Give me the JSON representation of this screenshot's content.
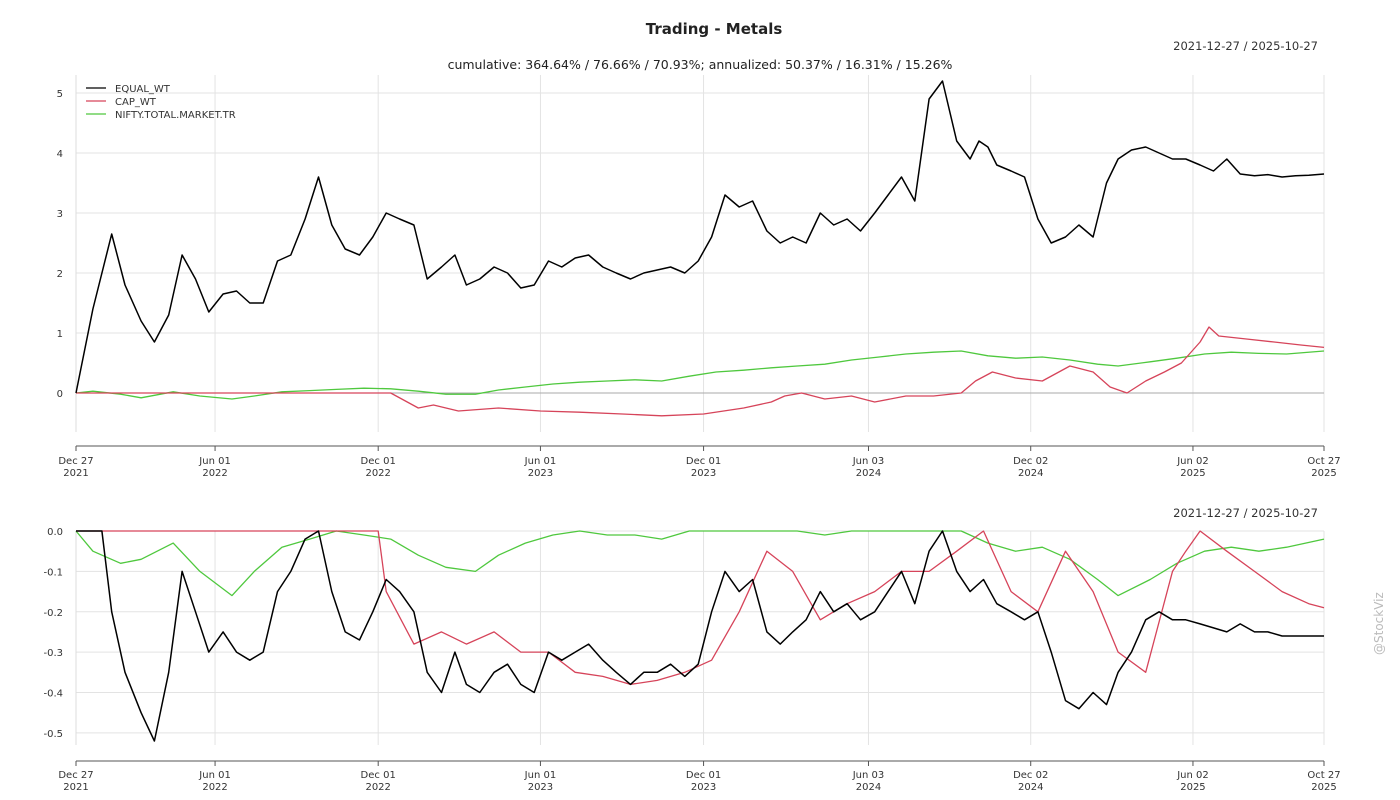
{
  "title": "Trading - Metals",
  "subtitle": "cumulative: 364.64% / 76.66% / 70.93%; annualized: 50.37% / 16.31% / 15.26%",
  "watermark": "@StockViz",
  "colors": {
    "EQUAL_WT": "#000000",
    "CAP_WT": "#d6445a",
    "NIFTY.TOTAL.MARKET.TR": "#4fc83e"
  },
  "chart_data": [
    {
      "type": "line",
      "date_range": "2021-12-27 / 2025-10-27",
      "ylim": [
        -0.65,
        5.3
      ],
      "yticks": [
        "0",
        "1",
        "2",
        "3",
        "4",
        "5"
      ],
      "ytick_values": [
        0,
        1,
        2,
        3,
        4,
        5
      ],
      "grid": true,
      "legend": "top-left",
      "x_labels": [
        [
          "Dec 27",
          "2021"
        ],
        [
          "Jun 01",
          "2022"
        ],
        [
          "Dec 01",
          "2022"
        ],
        [
          "Jun 01",
          "2023"
        ],
        [
          "Dec 01",
          "2023"
        ],
        [
          "Jun 03",
          "2024"
        ],
        [
          "Dec 02",
          "2024"
        ],
        [
          "Jun 02",
          "2025"
        ],
        [
          "Oct 27",
          "2025"
        ]
      ],
      "x_dates": [
        "2021-12-27",
        "2022-06-01",
        "2022-12-01",
        "2023-06-01",
        "2023-12-01",
        "2024-06-03",
        "2024-12-02",
        "2025-06-02",
        "2025-10-27"
      ],
      "series": [
        {
          "name": "EQUAL_WT",
          "color": "#000000",
          "x": [
            "2021-12-27",
            "2022-01-15",
            "2022-02-05",
            "2022-02-20",
            "2022-03-10",
            "2022-03-25",
            "2022-04-10",
            "2022-04-25",
            "2022-05-10",
            "2022-05-25",
            "2022-06-10",
            "2022-06-25",
            "2022-07-10",
            "2022-07-25",
            "2022-08-10",
            "2022-08-25",
            "2022-09-10",
            "2022-09-25",
            "2022-10-10",
            "2022-10-25",
            "2022-11-10",
            "2022-11-25",
            "2022-12-10",
            "2022-12-25",
            "2023-01-10",
            "2023-01-25",
            "2023-02-10",
            "2023-02-25",
            "2023-03-10",
            "2023-03-25",
            "2023-04-10",
            "2023-04-25",
            "2023-05-10",
            "2023-05-25",
            "2023-06-10",
            "2023-06-25",
            "2023-07-10",
            "2023-07-25",
            "2023-08-10",
            "2023-08-25",
            "2023-09-10",
            "2023-09-25",
            "2023-10-10",
            "2023-10-25",
            "2023-11-10",
            "2023-11-25",
            "2023-12-10",
            "2023-12-25",
            "2024-01-10",
            "2024-01-25",
            "2024-02-10",
            "2024-02-25",
            "2024-03-10",
            "2024-03-25",
            "2024-04-10",
            "2024-04-25",
            "2024-05-10",
            "2024-05-25",
            "2024-06-10",
            "2024-06-25",
            "2024-07-10",
            "2024-07-25",
            "2024-08-10",
            "2024-08-25",
            "2024-09-10",
            "2024-09-25",
            "2024-10-05",
            "2024-10-15",
            "2024-10-25",
            "2024-11-10",
            "2024-11-25",
            "2024-12-10",
            "2024-12-25",
            "2025-01-10",
            "2025-01-25",
            "2025-02-10",
            "2025-02-25",
            "2025-03-10",
            "2025-03-25",
            "2025-04-10",
            "2025-04-25",
            "2025-05-10",
            "2025-05-25",
            "2025-06-10",
            "2025-06-25",
            "2025-07-10",
            "2025-07-25",
            "2025-08-10",
            "2025-08-25",
            "2025-09-10",
            "2025-09-25",
            "2025-10-10",
            "2025-10-27"
          ],
          "y": [
            0.0,
            1.4,
            2.65,
            1.8,
            1.2,
            0.85,
            1.3,
            2.3,
            1.9,
            1.35,
            1.65,
            1.7,
            1.5,
            1.5,
            2.2,
            2.3,
            2.9,
            3.6,
            2.8,
            2.4,
            2.3,
            2.6,
            3.0,
            2.9,
            2.8,
            1.9,
            2.1,
            2.3,
            1.8,
            1.9,
            2.1,
            2.0,
            1.75,
            1.8,
            2.2,
            2.1,
            2.25,
            2.3,
            2.1,
            2.0,
            1.9,
            2.0,
            2.05,
            2.1,
            2.0,
            2.2,
            2.6,
            3.3,
            3.1,
            3.2,
            2.7,
            2.5,
            2.6,
            2.5,
            3.0,
            2.8,
            2.9,
            2.7,
            3.0,
            3.3,
            3.6,
            3.2,
            4.9,
            5.2,
            4.2,
            3.9,
            4.2,
            4.1,
            3.8,
            3.7,
            3.6,
            2.9,
            2.5,
            2.6,
            2.8,
            2.6,
            3.5,
            3.9,
            4.05,
            4.1,
            4.0,
            3.9,
            3.9,
            3.8,
            3.7,
            3.9,
            3.65,
            3.62,
            3.64,
            3.6,
            3.62,
            3.63,
            3.65
          ]
        },
        {
          "name": "CAP_WT",
          "color": "#d6445a",
          "x": [
            "2021-12-27",
            "2022-03-01",
            "2022-06-01",
            "2022-09-01",
            "2022-12-15",
            "2023-01-15",
            "2023-02-01",
            "2023-03-01",
            "2023-04-15",
            "2023-06-01",
            "2023-07-15",
            "2023-09-01",
            "2023-10-15",
            "2023-12-01",
            "2024-01-15",
            "2024-02-15",
            "2024-03-01",
            "2024-03-20",
            "2024-04-15",
            "2024-05-15",
            "2024-06-10",
            "2024-07-15",
            "2024-08-15",
            "2024-09-15",
            "2024-10-01",
            "2024-10-20",
            "2024-11-15",
            "2024-12-15",
            "2025-01-15",
            "2025-02-10",
            "2025-03-01",
            "2025-03-20",
            "2025-04-10",
            "2025-05-01",
            "2025-05-20",
            "2025-06-10",
            "2025-06-20",
            "2025-07-01",
            "2025-08-01",
            "2025-09-01",
            "2025-10-01",
            "2025-10-27"
          ],
          "y": [
            0.0,
            0.0,
            0.0,
            0.0,
            0.0,
            -0.25,
            -0.2,
            -0.3,
            -0.25,
            -0.3,
            -0.32,
            -0.35,
            -0.38,
            -0.35,
            -0.25,
            -0.15,
            -0.05,
            0.0,
            -0.1,
            -0.05,
            -0.15,
            -0.05,
            -0.05,
            0.0,
            0.2,
            0.35,
            0.25,
            0.2,
            0.45,
            0.35,
            0.1,
            0.0,
            0.2,
            0.35,
            0.5,
            0.85,
            1.1,
            0.95,
            0.9,
            0.85,
            0.8,
            0.76
          ]
        },
        {
          "name": "NIFTY.TOTAL.MARKET.TR",
          "color": "#4fc83e",
          "x": [
            "2021-12-27",
            "2022-01-15",
            "2022-02-15",
            "2022-03-10",
            "2022-04-15",
            "2022-05-15",
            "2022-06-20",
            "2022-07-15",
            "2022-08-15",
            "2022-09-15",
            "2022-10-15",
            "2022-11-15",
            "2022-12-15",
            "2023-01-15",
            "2023-02-15",
            "2023-03-20",
            "2023-04-15",
            "2023-05-15",
            "2023-06-15",
            "2023-07-15",
            "2023-08-15",
            "2023-09-15",
            "2023-10-15",
            "2023-11-15",
            "2023-12-15",
            "2024-01-15",
            "2024-02-15",
            "2024-03-15",
            "2024-04-15",
            "2024-05-15",
            "2024-06-15",
            "2024-07-15",
            "2024-08-15",
            "2024-09-15",
            "2024-10-15",
            "2024-11-15",
            "2024-12-15",
            "2025-01-15",
            "2025-02-15",
            "2025-03-10",
            "2025-04-15",
            "2025-05-15",
            "2025-06-15",
            "2025-07-15",
            "2025-08-15",
            "2025-09-15",
            "2025-10-27"
          ],
          "y": [
            0.0,
            0.03,
            -0.02,
            -0.08,
            0.02,
            -0.05,
            -0.1,
            -0.05,
            0.02,
            0.04,
            0.06,
            0.08,
            0.07,
            0.03,
            -0.02,
            -0.02,
            0.05,
            0.1,
            0.15,
            0.18,
            0.2,
            0.22,
            0.2,
            0.28,
            0.35,
            0.38,
            0.42,
            0.45,
            0.48,
            0.55,
            0.6,
            0.65,
            0.68,
            0.7,
            0.62,
            0.58,
            0.6,
            0.55,
            0.48,
            0.45,
            0.52,
            0.58,
            0.65,
            0.68,
            0.66,
            0.65,
            0.7
          ]
        }
      ]
    },
    {
      "type": "line",
      "date_range": "2021-12-27 / 2025-10-27",
      "ylim": [
        -0.53,
        0.0
      ],
      "yticks": [
        "0.0",
        "-0.1",
        "-0.2",
        "-0.3",
        "-0.4",
        "-0.5"
      ],
      "ytick_values": [
        0,
        -0.1,
        -0.2,
        -0.3,
        -0.4,
        -0.5
      ],
      "grid": true,
      "x_labels": [
        [
          "Dec 27",
          "2021"
        ],
        [
          "Jun 01",
          "2022"
        ],
        [
          "Dec 01",
          "2022"
        ],
        [
          "Jun 01",
          "2023"
        ],
        [
          "Dec 01",
          "2023"
        ],
        [
          "Jun 03",
          "2024"
        ],
        [
          "Dec 02",
          "2024"
        ],
        [
          "Jun 02",
          "2025"
        ],
        [
          "Oct 27",
          "2025"
        ]
      ],
      "x_dates": [
        "2021-12-27",
        "2022-06-01",
        "2022-12-01",
        "2023-06-01",
        "2023-12-01",
        "2024-06-03",
        "2024-12-02",
        "2025-06-02",
        "2025-10-27"
      ],
      "series": [
        {
          "name": "EQUAL_WT",
          "color": "#000000",
          "x": [
            "2021-12-27",
            "2022-01-25",
            "2022-02-05",
            "2022-02-20",
            "2022-03-10",
            "2022-03-25",
            "2022-04-10",
            "2022-04-25",
            "2022-05-10",
            "2022-05-25",
            "2022-06-10",
            "2022-06-25",
            "2022-07-10",
            "2022-07-25",
            "2022-08-10",
            "2022-08-25",
            "2022-09-10",
            "2022-09-25",
            "2022-10-10",
            "2022-10-25",
            "2022-11-10",
            "2022-11-25",
            "2022-12-10",
            "2022-12-25",
            "2023-01-10",
            "2023-01-25",
            "2023-02-10",
            "2023-02-25",
            "2023-03-10",
            "2023-03-25",
            "2023-04-10",
            "2023-04-25",
            "2023-05-10",
            "2023-05-25",
            "2023-06-10",
            "2023-06-25",
            "2023-07-10",
            "2023-07-25",
            "2023-08-10",
            "2023-08-25",
            "2023-09-10",
            "2023-09-25",
            "2023-10-10",
            "2023-10-25",
            "2023-11-10",
            "2023-11-25",
            "2023-12-10",
            "2023-12-25",
            "2024-01-10",
            "2024-01-25",
            "2024-02-10",
            "2024-02-25",
            "2024-03-10",
            "2024-03-25",
            "2024-04-10",
            "2024-04-25",
            "2024-05-10",
            "2024-05-25",
            "2024-06-10",
            "2024-06-25",
            "2024-07-10",
            "2024-07-25",
            "2024-08-10",
            "2024-08-25",
            "2024-09-10",
            "2024-09-25",
            "2024-10-10",
            "2024-10-25",
            "2024-11-10",
            "2024-11-25",
            "2024-12-10",
            "2024-12-25",
            "2025-01-10",
            "2025-01-25",
            "2025-02-10",
            "2025-02-25",
            "2025-03-10",
            "2025-03-25",
            "2025-04-10",
            "2025-04-25",
            "2025-05-10",
            "2025-05-25",
            "2025-06-10",
            "2025-06-25",
            "2025-07-10",
            "2025-07-25",
            "2025-08-10",
            "2025-08-25",
            "2025-09-10",
            "2025-09-25",
            "2025-10-10",
            "2025-10-27"
          ],
          "y": [
            0.0,
            0.0,
            -0.2,
            -0.35,
            -0.45,
            -0.52,
            -0.35,
            -0.1,
            -0.2,
            -0.3,
            -0.25,
            -0.3,
            -0.32,
            -0.3,
            -0.15,
            -0.1,
            -0.02,
            0.0,
            -0.15,
            -0.25,
            -0.27,
            -0.2,
            -0.12,
            -0.15,
            -0.2,
            -0.35,
            -0.4,
            -0.3,
            -0.38,
            -0.4,
            -0.35,
            -0.33,
            -0.38,
            -0.4,
            -0.3,
            -0.32,
            -0.3,
            -0.28,
            -0.32,
            -0.35,
            -0.38,
            -0.35,
            -0.35,
            -0.33,
            -0.36,
            -0.33,
            -0.2,
            -0.1,
            -0.15,
            -0.12,
            -0.25,
            -0.28,
            -0.25,
            -0.22,
            -0.15,
            -0.2,
            -0.18,
            -0.22,
            -0.2,
            -0.15,
            -0.1,
            -0.18,
            -0.05,
            0.0,
            -0.1,
            -0.15,
            -0.12,
            -0.18,
            -0.2,
            -0.22,
            -0.2,
            -0.3,
            -0.42,
            -0.44,
            -0.4,
            -0.43,
            -0.35,
            -0.3,
            -0.22,
            -0.2,
            -0.22,
            -0.22,
            -0.23,
            -0.24,
            -0.25,
            -0.23,
            -0.25,
            -0.25,
            -0.26,
            -0.26,
            -0.26,
            -0.26
          ]
        },
        {
          "name": "CAP_WT",
          "color": "#d6445a",
          "x": [
            "2021-12-27",
            "2022-06-01",
            "2022-12-01",
            "2022-12-10",
            "2023-01-10",
            "2023-02-10",
            "2023-03-10",
            "2023-04-10",
            "2023-05-10",
            "2023-06-10",
            "2023-07-10",
            "2023-08-10",
            "2023-09-10",
            "2023-10-10",
            "2023-11-10",
            "2023-12-10",
            "2024-01-10",
            "2024-02-10",
            "2024-03-10",
            "2024-04-10",
            "2024-05-10",
            "2024-06-10",
            "2024-07-10",
            "2024-08-10",
            "2024-09-10",
            "2024-10-10",
            "2024-11-10",
            "2024-12-10",
            "2025-01-10",
            "2025-02-10",
            "2025-03-10",
            "2025-04-10",
            "2025-05-10",
            "2025-05-25",
            "2025-06-10",
            "2025-07-10",
            "2025-08-10",
            "2025-09-10",
            "2025-10-10",
            "2025-10-27"
          ],
          "y": [
            0.0,
            0.0,
            0.0,
            -0.15,
            -0.28,
            -0.25,
            -0.28,
            -0.25,
            -0.3,
            -0.3,
            -0.35,
            -0.36,
            -0.38,
            -0.37,
            -0.35,
            -0.32,
            -0.2,
            -0.05,
            -0.1,
            -0.22,
            -0.18,
            -0.15,
            -0.1,
            -0.1,
            -0.05,
            0.0,
            -0.15,
            -0.2,
            -0.05,
            -0.15,
            -0.3,
            -0.35,
            -0.1,
            -0.05,
            0.0,
            -0.05,
            -0.1,
            -0.15,
            -0.18,
            -0.19
          ]
        },
        {
          "name": "NIFTY.TOTAL.MARKET.TR",
          "color": "#4fc83e",
          "x": [
            "2021-12-27",
            "2022-01-15",
            "2022-02-15",
            "2022-03-10",
            "2022-04-15",
            "2022-05-15",
            "2022-06-20",
            "2022-07-15",
            "2022-08-15",
            "2022-09-15",
            "2022-10-15",
            "2022-11-15",
            "2022-12-15",
            "2023-01-15",
            "2023-02-15",
            "2023-03-20",
            "2023-04-15",
            "2023-05-15",
            "2023-06-15",
            "2023-07-15",
            "2023-08-15",
            "2023-09-15",
            "2023-10-15",
            "2023-11-15",
            "2023-12-15",
            "2024-01-15",
            "2024-02-15",
            "2024-03-15",
            "2024-04-15",
            "2024-05-15",
            "2024-06-15",
            "2024-07-15",
            "2024-08-15",
            "2024-09-15",
            "2024-10-15",
            "2024-11-15",
            "2024-12-15",
            "2025-01-15",
            "2025-02-15",
            "2025-03-10",
            "2025-04-15",
            "2025-05-15",
            "2025-06-15",
            "2025-07-15",
            "2025-08-15",
            "2025-09-15",
            "2025-10-27"
          ],
          "y": [
            0.0,
            -0.05,
            -0.08,
            -0.07,
            -0.03,
            -0.1,
            -0.16,
            -0.1,
            -0.04,
            -0.02,
            0.0,
            -0.01,
            -0.02,
            -0.06,
            -0.09,
            -0.1,
            -0.06,
            -0.03,
            -0.01,
            0.0,
            -0.01,
            -0.01,
            -0.02,
            0.0,
            0.0,
            0.0,
            0.0,
            0.0,
            -0.01,
            0.0,
            0.0,
            0.0,
            0.0,
            0.0,
            -0.03,
            -0.05,
            -0.04,
            -0.07,
            -0.12,
            -0.16,
            -0.12,
            -0.08,
            -0.05,
            -0.04,
            -0.05,
            -0.04,
            -0.02
          ]
        }
      ]
    }
  ]
}
